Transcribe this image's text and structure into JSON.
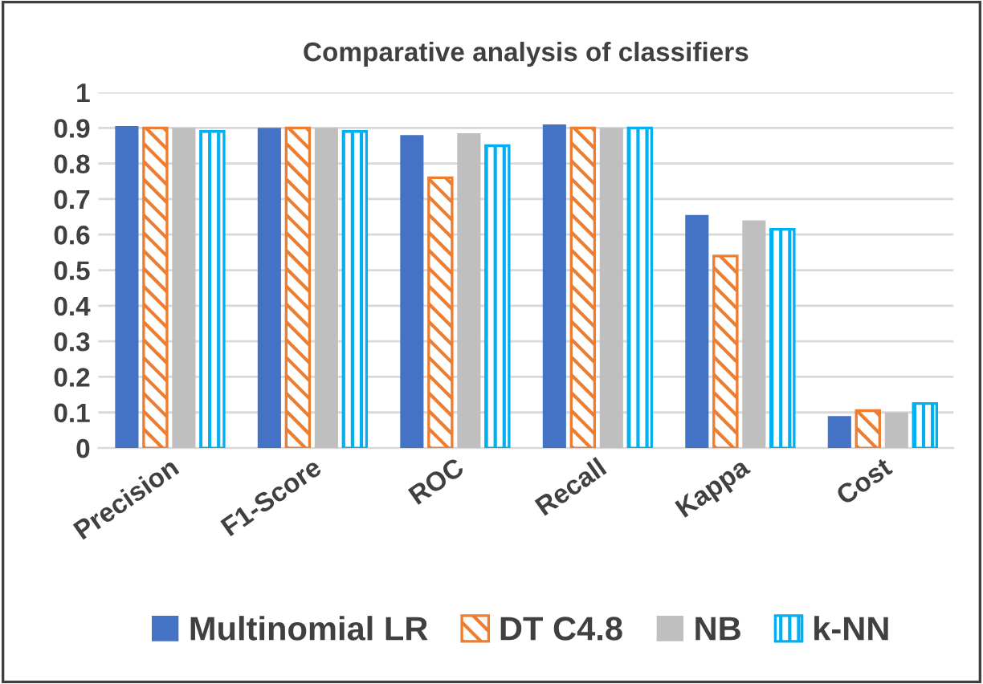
{
  "chart_data": {
    "type": "bar",
    "title": "Comparative analysis of classifiers",
    "categories": [
      "Precision",
      "F1-Score",
      "ROC",
      "Recall",
      "Kappa",
      "Cost"
    ],
    "series": [
      {
        "name": "Multinomial LR",
        "color": "#4472c4",
        "values": [
          0.905,
          0.9,
          0.88,
          0.91,
          0.655,
          0.09
        ]
      },
      {
        "name": "DT C4.8",
        "color": "#ed7d31",
        "values": [
          0.9,
          0.9,
          0.76,
          0.9,
          0.54,
          0.105
        ]
      },
      {
        "name": "NB",
        "color": "#bfbfbf",
        "values": [
          0.9,
          0.9,
          0.885,
          0.9,
          0.64,
          0.1
        ]
      },
      {
        "name": "k-NN",
        "color": "#00b0f0",
        "values": [
          0.89,
          0.89,
          0.85,
          0.9,
          0.615,
          0.125
        ]
      }
    ],
    "ylim": [
      0,
      1
    ],
    "yticks": [
      0,
      0.1,
      0.2,
      0.3,
      0.4,
      0.5,
      0.6,
      0.7,
      0.8,
      0.9,
      1
    ],
    "grid": "y",
    "legend": "bottom"
  }
}
